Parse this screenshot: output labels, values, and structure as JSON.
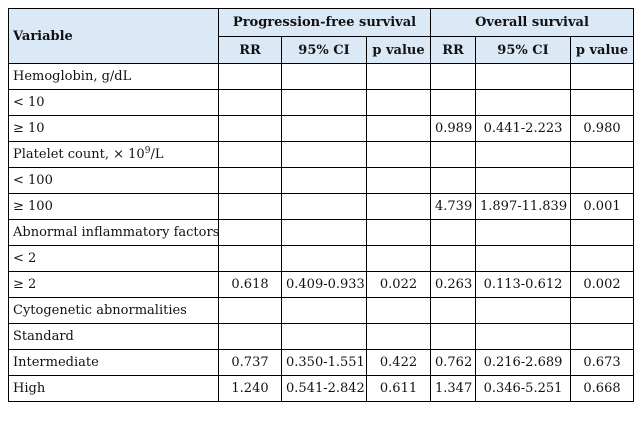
{
  "table": {
    "corner_header": "Variable",
    "groups": [
      "Progression-free survival",
      "Overall survival"
    ],
    "subheaders": [
      "RR",
      "95% CI",
      "p value",
      "RR",
      "95% CI",
      "p value"
    ],
    "rows": [
      {
        "label": "Hemoglobin, g/dL",
        "cells": [
          "",
          "",
          "",
          "",
          "",
          ""
        ]
      },
      {
        "label": "< 10",
        "cells": [
          "",
          "",
          "",
          "",
          "",
          ""
        ]
      },
      {
        "label": "≥ 10",
        "cells": [
          "",
          "",
          "",
          "0.989",
          "0.441-2.223",
          "0.980"
        ]
      },
      {
        "label_pre": "Platelet count, × 10",
        "label_sup": "9",
        "label_post": "/L",
        "cells": [
          "",
          "",
          "",
          "",
          "",
          ""
        ]
      },
      {
        "label": "< 100",
        "cells": [
          "",
          "",
          "",
          "",
          "",
          ""
        ]
      },
      {
        "label": "≥ 100",
        "cells": [
          "",
          "",
          "",
          "4.739",
          "1.897-11.839",
          "0.001"
        ]
      },
      {
        "label": "Abnormal inflammatory factors",
        "cells": [
          "",
          "",
          "",
          "",
          "",
          ""
        ]
      },
      {
        "label": "< 2",
        "cells": [
          "",
          "",
          "",
          "",
          "",
          ""
        ]
      },
      {
        "label": "≥ 2",
        "cells": [
          "0.618",
          "0.409-0.933",
          "0.022",
          "0.263",
          "0.113-0.612",
          "0.002"
        ]
      },
      {
        "label": "Cytogenetic abnormalities",
        "cells": [
          "",
          "",
          "",
          "",
          "",
          ""
        ]
      },
      {
        "label": "Standard",
        "cells": [
          "",
          "",
          "",
          "",
          "",
          ""
        ]
      },
      {
        "label": "Intermediate",
        "cells": [
          "0.737",
          "0.350-1.551",
          "0.422",
          "0.762",
          "0.216-2.689",
          "0.673"
        ]
      },
      {
        "label": "High",
        "cells": [
          "1.240",
          "0.541-2.842",
          "0.611",
          "1.347",
          "0.346-5.251",
          "0.668"
        ]
      }
    ]
  }
}
